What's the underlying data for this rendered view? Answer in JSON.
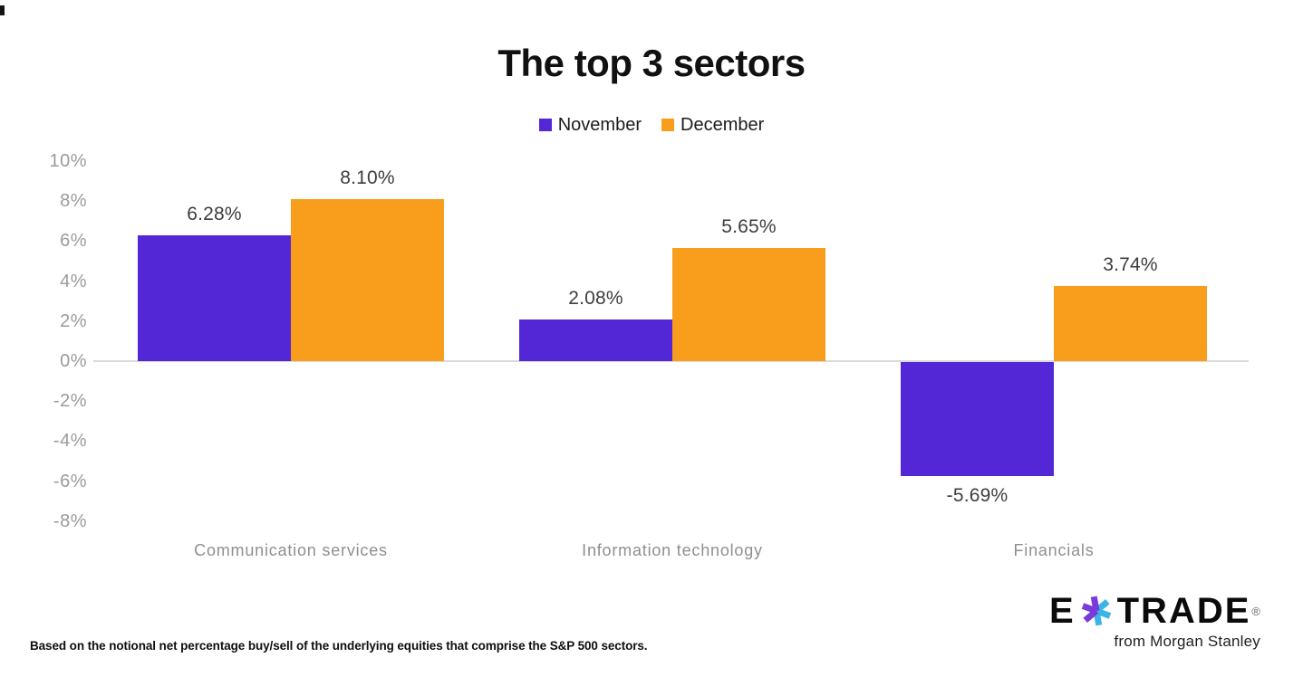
{
  "chart_data": {
    "type": "bar",
    "title": "The top 3 sectors",
    "categories": [
      "Communication services",
      "Information technology",
      "Financials"
    ],
    "series": [
      {
        "name": "November",
        "color": "#5427D6",
        "values": [
          6.28,
          2.08,
          -5.69
        ],
        "labels": [
          "6.28%",
          "2.08%",
          "-5.69%"
        ]
      },
      {
        "name": "December",
        "color": "#F99E1C",
        "values": [
          8.1,
          5.65,
          3.74
        ],
        "labels": [
          "8.10%",
          "5.65%",
          "3.74%"
        ]
      }
    ],
    "y_axis": {
      "min": -8,
      "max": 10,
      "ticks": [
        {
          "label": "10%",
          "value": 10
        },
        {
          "label": "8%",
          "value": 8
        },
        {
          "label": "6%",
          "value": 6
        },
        {
          "label": "4%",
          "value": 4
        },
        {
          "label": "2%",
          "value": 2
        },
        {
          "label": "0%",
          "value": 0
        },
        {
          "label": "-2%",
          "value": -2
        },
        {
          "label": "-4%",
          "value": -4
        },
        {
          "label": "-6%",
          "value": -6
        },
        {
          "label": "-8%",
          "value": -8
        }
      ]
    },
    "legend_position": "top",
    "grid": "zero-line-only"
  },
  "footnote": "Based on the notional net percentage buy/sell of the underlying equities that comprise the S&P 500 sectors.",
  "logo": {
    "brand_e": "E",
    "brand_trade": "TRADE",
    "registered": "®",
    "subtitle": "from Morgan Stanley",
    "asterisk_purple": "#7B3BDB",
    "asterisk_cyan": "#3CB4E5"
  }
}
